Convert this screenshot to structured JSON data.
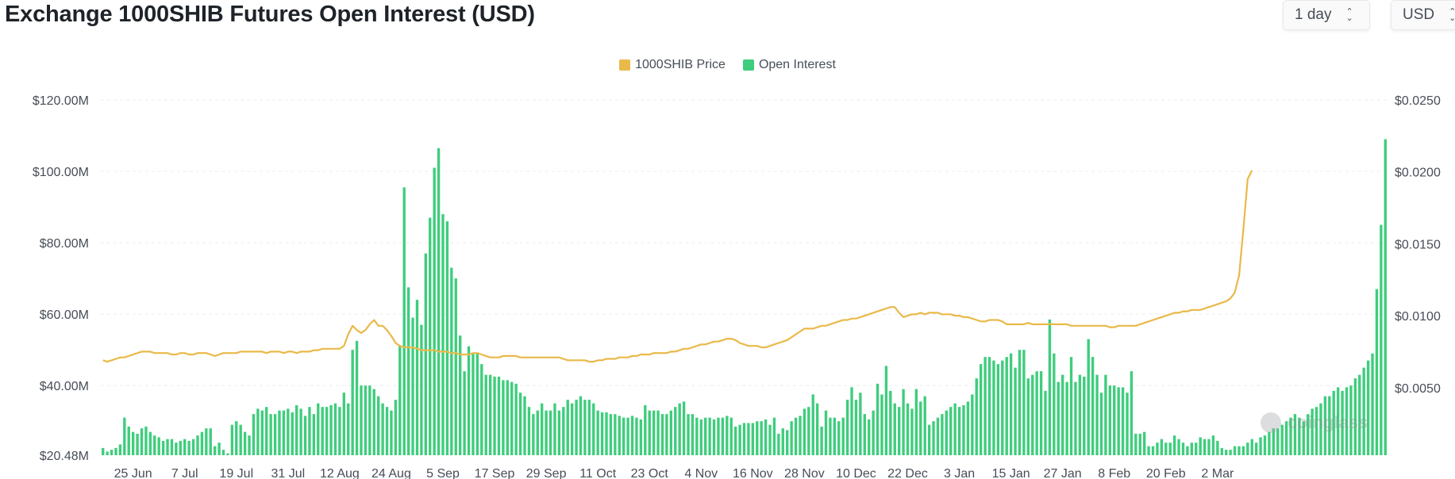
{
  "header": {
    "title": "Exchange 1000SHIB Futures Open Interest (USD)",
    "interval_label": "1 day",
    "currency_label": "USD"
  },
  "legend": {
    "price_label": "1000SHIB Price",
    "oi_label": "Open Interest"
  },
  "watermark": "coinglass",
  "colors": {
    "price": "#e9b949",
    "open_interest": "#3ecd7c",
    "grid": "#eaecef",
    "axis_text": "#474d57"
  },
  "chart_data": {
    "type": "bar+line",
    "title": "Exchange 1000SHIB Futures Open Interest (USD)",
    "x_tick_labels": [
      "25 Jun",
      "7 Jul",
      "19 Jul",
      "31 Jul",
      "12 Aug",
      "24 Aug",
      "5 Sep",
      "17 Sep",
      "29 Sep",
      "11 Oct",
      "23 Oct",
      "4 Nov",
      "16 Nov",
      "28 Nov",
      "10 Dec",
      "22 Dec",
      "3 Jan",
      "15 Jan",
      "27 Jan",
      "8 Feb",
      "20 Feb",
      "2 Mar"
    ],
    "x_tick_day_index": [
      7,
      19,
      31,
      43,
      55,
      67,
      79,
      91,
      103,
      115,
      127,
      139,
      151,
      163,
      175,
      187,
      199,
      211,
      223,
      235,
      247,
      259
    ],
    "left_axis": {
      "ticks": [
        "$20.48M",
        "$40.00M",
        "$60.00M",
        "$80.00M",
        "$100.00M",
        "$120.00M"
      ],
      "tick_values": [
        20.48,
        40,
        60,
        80,
        100,
        120
      ],
      "range": [
        20.48,
        120
      ]
    },
    "right_axis": {
      "ticks": [
        "$0.0050",
        "$0.0100",
        "$0.0150",
        "$0.0200",
        "$0.0250"
      ],
      "tick_values": [
        0.005,
        0.01,
        0.015,
        0.02,
        0.025
      ],
      "range": [
        0.0003,
        0.025
      ]
    },
    "grid": true,
    "legend_position": "top-center",
    "series": [
      {
        "name": "Open Interest",
        "kind": "bar",
        "axis": "left",
        "unit": "USD millions",
        "values": [
          22.5,
          21.5,
          22,
          22.5,
          23.5,
          31,
          28.5,
          27,
          26.5,
          28,
          28.5,
          27,
          26,
          25.5,
          24.5,
          25,
          25,
          24,
          24.5,
          25,
          24.5,
          25,
          26,
          27,
          28,
          28,
          23,
          24,
          22,
          21,
          29,
          30,
          29,
          27,
          26,
          32,
          33.5,
          33,
          34,
          32,
          32,
          33,
          33,
          33.5,
          32.5,
          34.5,
          33.5,
          31.5,
          34,
          32,
          35,
          34,
          34,
          34.5,
          35,
          34,
          38,
          35,
          50,
          52.5,
          40,
          40,
          40,
          39,
          37,
          35,
          34,
          33,
          36,
          51,
          95.5,
          67.5,
          59,
          64,
          57,
          77,
          87,
          101,
          106.5,
          88,
          86,
          73,
          70,
          54,
          44,
          51,
          49,
          49,
          46,
          43,
          43,
          42.5,
          42.5,
          41.5,
          41.5,
          41,
          40.5,
          38,
          37,
          34,
          32,
          33,
          35,
          33,
          33,
          35,
          33,
          34,
          36,
          35,
          36,
          37,
          36,
          36,
          35,
          33,
          32.5,
          32.5,
          32,
          32,
          31.5,
          31,
          31,
          31.5,
          31,
          30.5,
          34.5,
          33,
          33,
          33,
          32,
          32,
          33,
          34,
          35,
          35.5,
          32,
          32,
          31,
          30.5,
          31,
          31,
          30.5,
          31,
          31,
          31.5,
          31,
          28.5,
          29,
          29.5,
          29.5,
          29.5,
          30,
          30,
          30.5,
          29,
          31,
          26.5,
          28,
          27.5,
          30,
          31,
          31.5,
          33.5,
          34,
          37.5,
          35,
          28.5,
          33,
          31,
          31,
          30,
          31,
          36,
          39.5,
          36,
          38,
          32,
          30.5,
          33,
          40.5,
          37.5,
          45.5,
          38.5,
          35,
          34,
          39,
          35,
          33.5,
          39,
          35.5,
          37,
          29,
          30,
          31,
          32,
          33,
          34,
          35,
          34,
          34.5,
          35.5,
          37.5,
          42,
          46,
          48,
          48,
          47,
          46,
          47,
          48,
          49,
          45,
          50,
          50,
          42,
          43,
          44,
          44,
          38.5,
          58.5,
          49,
          41,
          43,
          41,
          48,
          41,
          43,
          42.5,
          53,
          48,
          43,
          38,
          43,
          40,
          40,
          39.5,
          39.5,
          38,
          44,
          26.5,
          26.5,
          27,
          23,
          23,
          24,
          25,
          24,
          24,
          26,
          25,
          24,
          23,
          24,
          24,
          25.5,
          25,
          25,
          26,
          24.5,
          22.5,
          22,
          22,
          23,
          23,
          23,
          24,
          25,
          24,
          25.5,
          26,
          27,
          28,
          28,
          29,
          30,
          31,
          32,
          31,
          30,
          32,
          33.5,
          34,
          35,
          37,
          37,
          38.5,
          39.5,
          38.5,
          39.5,
          40,
          42,
          43,
          45,
          47,
          49,
          67,
          85,
          109
        ]
      },
      {
        "name": "1000SHIB Price",
        "kind": "line",
        "axis": "right",
        "unit": "USD",
        "values": [
          0.0069,
          0.0068,
          0.0069,
          0.007,
          0.0071,
          0.0071,
          0.0072,
          0.0073,
          0.0074,
          0.0075,
          0.0075,
          0.0075,
          0.0074,
          0.0074,
          0.0074,
          0.0074,
          0.0073,
          0.0073,
          0.0074,
          0.0074,
          0.0073,
          0.0073,
          0.0074,
          0.0074,
          0.0074,
          0.0073,
          0.0072,
          0.0073,
          0.0074,
          0.0074,
          0.0074,
          0.0074,
          0.0075,
          0.0075,
          0.0075,
          0.0075,
          0.0075,
          0.0075,
          0.0074,
          0.0075,
          0.0075,
          0.0075,
          0.0074,
          0.0075,
          0.0075,
          0.0074,
          0.0075,
          0.0075,
          0.0075,
          0.0076,
          0.0076,
          0.0077,
          0.0077,
          0.0077,
          0.0077,
          0.0077,
          0.0079,
          0.0087,
          0.0093,
          0.009,
          0.0088,
          0.009,
          0.0094,
          0.0097,
          0.0093,
          0.0093,
          0.009,
          0.0086,
          0.0081,
          0.0079,
          0.0078,
          0.0078,
          0.0078,
          0.0077,
          0.0076,
          0.0076,
          0.0076,
          0.0076,
          0.0075,
          0.0075,
          0.0075,
          0.0074,
          0.0074,
          0.0073,
          0.0073,
          0.0073,
          0.0074,
          0.0074,
          0.0073,
          0.0072,
          0.0071,
          0.0071,
          0.0071,
          0.0072,
          0.0072,
          0.0072,
          0.0072,
          0.0071,
          0.0071,
          0.0071,
          0.0071,
          0.0071,
          0.0071,
          0.0071,
          0.0071,
          0.0071,
          0.0071,
          0.007,
          0.0069,
          0.0069,
          0.0069,
          0.0069,
          0.0069,
          0.0068,
          0.0068,
          0.0069,
          0.0069,
          0.007,
          0.007,
          0.007,
          0.0071,
          0.0071,
          0.0071,
          0.0072,
          0.0072,
          0.0073,
          0.0073,
          0.0073,
          0.0074,
          0.0074,
          0.0074,
          0.0074,
          0.0075,
          0.0075,
          0.0076,
          0.0077,
          0.0077,
          0.0078,
          0.0079,
          0.008,
          0.008,
          0.0081,
          0.0082,
          0.0082,
          0.0083,
          0.0084,
          0.0084,
          0.0083,
          0.0081,
          0.008,
          0.0079,
          0.0079,
          0.0079,
          0.0078,
          0.0078,
          0.0079,
          0.008,
          0.0081,
          0.0082,
          0.0083,
          0.0085,
          0.0087,
          0.0089,
          0.0091,
          0.0091,
          0.0091,
          0.0092,
          0.0093,
          0.0093,
          0.0094,
          0.0095,
          0.0096,
          0.0097,
          0.0097,
          0.0098,
          0.0098,
          0.0099,
          0.01,
          0.0101,
          0.0102,
          0.0103,
          0.0104,
          0.0105,
          0.0106,
          0.0106,
          0.0102,
          0.0099,
          0.01,
          0.0101,
          0.0101,
          0.0102,
          0.0101,
          0.0102,
          0.0102,
          0.0102,
          0.0101,
          0.0101,
          0.0101,
          0.01,
          0.01,
          0.0099,
          0.0099,
          0.0098,
          0.0097,
          0.0096,
          0.0096,
          0.0097,
          0.0097,
          0.0097,
          0.0096,
          0.0094,
          0.0094,
          0.0094,
          0.0094,
          0.0094,
          0.0095,
          0.0094,
          0.0094,
          0.0094,
          0.0094,
          0.0094,
          0.0094,
          0.0094,
          0.0094,
          0.0094,
          0.0093,
          0.0093,
          0.0093,
          0.0093,
          0.0093,
          0.0093,
          0.0093,
          0.0093,
          0.0093,
          0.0092,
          0.0092,
          0.0093,
          0.0093,
          0.0093,
          0.0093,
          0.0093,
          0.0094,
          0.0095,
          0.0096,
          0.0097,
          0.0098,
          0.0099,
          0.01,
          0.0101,
          0.0102,
          0.0102,
          0.0103,
          0.0103,
          0.0104,
          0.0104,
          0.0104,
          0.0105,
          0.0106,
          0.0107,
          0.0108,
          0.0109,
          0.011,
          0.0112,
          0.0116,
          0.0128,
          0.016,
          0.0195,
          0.0201
        ]
      }
    ]
  }
}
